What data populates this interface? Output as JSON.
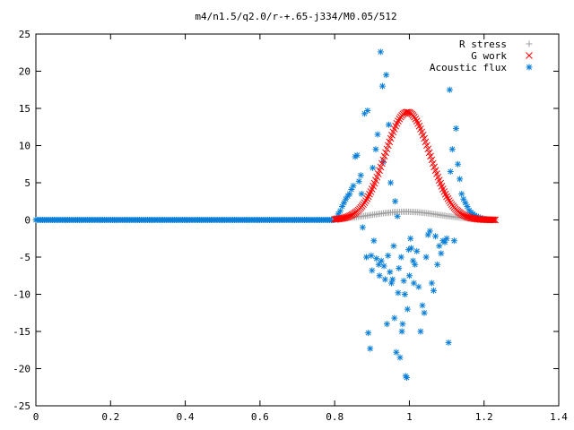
{
  "chart_data": {
    "type": "scatter",
    "title": "m4/n1.5/q2.0/r-+.65-j334/M0.05/512",
    "xlabel": "",
    "ylabel": "",
    "xlim": [
      0,
      1.4
    ],
    "ylim": [
      -25,
      25
    ],
    "xticks": [
      0,
      0.2,
      0.4,
      0.6,
      0.8,
      1,
      1.2,
      1.4
    ],
    "xtick_labels": [
      "0",
      "0.2",
      "0.4",
      "0.6",
      "0.8",
      "1",
      "1.2",
      "1.4"
    ],
    "yticks": [
      -25,
      -20,
      -15,
      -10,
      -5,
      0,
      5,
      10,
      15,
      20,
      25
    ],
    "ytick_labels": [
      "-25",
      "-20",
      "-15",
      "-10",
      "-5",
      "0",
      "5",
      "10",
      "15",
      "20",
      "25"
    ],
    "grid": false,
    "legend_position": "top-right",
    "series": [
      {
        "name": "R stress",
        "marker": "plus",
        "color": "#a0a0a0",
        "curve": {
          "kind": "gaussian",
          "amplitude": 1.1,
          "center": 0.99,
          "width": 0.13,
          "x_start": 0.8,
          "x_end": 1.23,
          "n": 90
        }
      },
      {
        "name": "G work",
        "marker": "cross",
        "color": "#ff0000",
        "curve": {
          "kind": "gaussian",
          "amplitude": 14.5,
          "center": 0.995,
          "width": 0.085,
          "x_start": 0.8,
          "x_end": 1.23,
          "n": 130
        }
      },
      {
        "name": "Acoustic flux",
        "marker": "star",
        "color": "#0a7fd8",
        "baseline": {
          "x_start": 0,
          "x_end": 0.8,
          "y": 0,
          "n": 180
        },
        "points": [
          [
            0.805,
            0.3
          ],
          [
            0.81,
            0.8
          ],
          [
            0.815,
            1.2
          ],
          [
            0.82,
            1.8
          ],
          [
            0.825,
            2.3
          ],
          [
            0.83,
            2.8
          ],
          [
            0.835,
            3.2
          ],
          [
            0.84,
            3.5
          ],
          [
            0.845,
            4.1
          ],
          [
            0.85,
            4.6
          ],
          [
            0.855,
            8.5
          ],
          [
            0.86,
            8.7
          ],
          [
            0.865,
            5.2
          ],
          [
            0.87,
            6.0
          ],
          [
            0.872,
            3.5
          ],
          [
            0.875,
            -1.0
          ],
          [
            0.88,
            14.3
          ],
          [
            0.885,
            -5.0
          ],
          [
            0.888,
            14.7
          ],
          [
            0.89,
            -15.2
          ],
          [
            0.895,
            -17.3
          ],
          [
            0.898,
            -4.8
          ],
          [
            0.9,
            -6.8
          ],
          [
            0.902,
            7.0
          ],
          [
            0.905,
            -2.8
          ],
          [
            0.91,
            9.5
          ],
          [
            0.912,
            -5.2
          ],
          [
            0.915,
            11.5
          ],
          [
            0.918,
            -6.0
          ],
          [
            0.92,
            -7.5
          ],
          [
            0.923,
            22.6
          ],
          [
            0.925,
            -5.5
          ],
          [
            0.928,
            18.0
          ],
          [
            0.93,
            7.8
          ],
          [
            0.932,
            -6.2
          ],
          [
            0.935,
            -8.0
          ],
          [
            0.938,
            19.5
          ],
          [
            0.94,
            -14.0
          ],
          [
            0.943,
            -4.8
          ],
          [
            0.945,
            12.8
          ],
          [
            0.948,
            -7.0
          ],
          [
            0.95,
            5.0
          ],
          [
            0.952,
            -8.5
          ],
          [
            0.955,
            -8.0
          ],
          [
            0.958,
            -3.5
          ],
          [
            0.96,
            -13.2
          ],
          [
            0.962,
            2.5
          ],
          [
            0.965,
            -17.8
          ],
          [
            0.968,
            0.5
          ],
          [
            0.97,
            -9.8
          ],
          [
            0.972,
            -6.5
          ],
          [
            0.975,
            -18.5
          ],
          [
            0.978,
            -5.0
          ],
          [
            0.98,
            -15.0
          ],
          [
            0.982,
            -14.0
          ],
          [
            0.985,
            -8.2
          ],
          [
            0.988,
            -10.0
          ],
          [
            0.99,
            -21.0
          ],
          [
            0.993,
            -21.2
          ],
          [
            0.995,
            -12.0
          ],
          [
            0.998,
            -4.0
          ],
          [
            1.0,
            -7.5
          ],
          [
            1.003,
            -2.5
          ],
          [
            1.005,
            -3.8
          ],
          [
            1.01,
            -5.5
          ],
          [
            1.012,
            -8.5
          ],
          [
            1.015,
            -6.0
          ],
          [
            1.02,
            -4.2
          ],
          [
            1.025,
            -9.0
          ],
          [
            1.03,
            -15.0
          ],
          [
            1.035,
            -11.5
          ],
          [
            1.04,
            -12.5
          ],
          [
            1.045,
            -5.0
          ],
          [
            1.05,
            -2.0
          ],
          [
            1.055,
            -1.5
          ],
          [
            1.06,
            -8.5
          ],
          [
            1.065,
            -9.5
          ],
          [
            1.07,
            -2.2
          ],
          [
            1.075,
            -6.0
          ],
          [
            1.08,
            -3.5
          ],
          [
            1.085,
            -4.5
          ],
          [
            1.09,
            -2.8
          ],
          [
            1.095,
            -3.0
          ],
          [
            1.1,
            -2.5
          ],
          [
            1.105,
            -16.5
          ],
          [
            1.108,
            17.5
          ],
          [
            1.11,
            6.5
          ],
          [
            1.115,
            9.5
          ],
          [
            1.12,
            -2.8
          ],
          [
            1.125,
            12.3
          ],
          [
            1.13,
            7.5
          ],
          [
            1.135,
            5.5
          ],
          [
            1.14,
            3.5
          ],
          [
            1.145,
            2.8
          ],
          [
            1.15,
            2.3
          ],
          [
            1.155,
            1.8
          ],
          [
            1.16,
            1.3
          ],
          [
            1.165,
            1.0
          ],
          [
            1.17,
            0.8
          ],
          [
            1.175,
            0.6
          ],
          [
            1.18,
            0.5
          ],
          [
            1.185,
            0.4
          ],
          [
            1.19,
            0.3
          ],
          [
            1.195,
            0.2
          ],
          [
            1.2,
            0.15
          ],
          [
            1.205,
            0.1
          ],
          [
            1.21,
            0.05
          ],
          [
            1.215,
            0.02
          ],
          [
            1.22,
            0.0
          ],
          [
            1.225,
            0.0
          ]
        ]
      }
    ]
  }
}
